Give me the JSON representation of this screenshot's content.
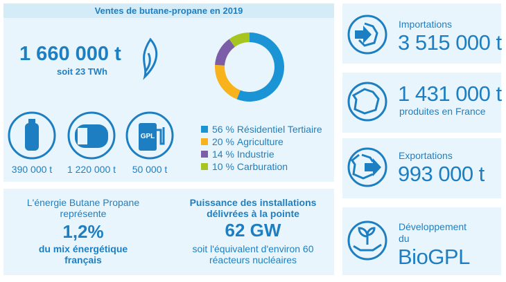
{
  "header": {
    "title": "Ventes de butane-propane en 2019"
  },
  "sales": {
    "total": "1 660 000 t",
    "energy": "soit 23 TWh"
  },
  "products": [
    {
      "name": "bouteille",
      "amount": "390 000 t"
    },
    {
      "name": "citerne",
      "amount": "1 220 000 t"
    },
    {
      "name": "GPL",
      "amount": "50 000 t"
    }
  ],
  "donut": {
    "segments": [
      {
        "value": 56,
        "value_label": "56 %",
        "name": "Résidentiel Tertiaire",
        "color": "#1b94d6"
      },
      {
        "value": 20,
        "value_label": "20 %",
        "name": "Agriculture",
        "color": "#f7b21c"
      },
      {
        "value": 14,
        "value_label": "14 %",
        "name": "Industrie",
        "color": "#7b5ea7"
      },
      {
        "value": 10,
        "value_label": "10 %",
        "name": "Carburation",
        "color": "#a7c520"
      }
    ]
  },
  "share": {
    "intro": "L'énergie Butane Propane représente",
    "value": "1,2%",
    "caption": "du mix énergétique français"
  },
  "power": {
    "intro": "Puissance des installations délivrées à la pointe",
    "value": "62 GW",
    "caption": "soit l'équivalent d'environ 60 réacteurs nucléaires"
  },
  "imports": {
    "label": "Importations",
    "value": "3 515 000 t"
  },
  "production": {
    "value": "1 431 000 t",
    "label": "produites en France"
  },
  "exports": {
    "label": "Exportations",
    "value": "993 000 t"
  },
  "biogpl": {
    "label": [
      "Développement",
      "du"
    ],
    "value": "BioGPL"
  }
}
